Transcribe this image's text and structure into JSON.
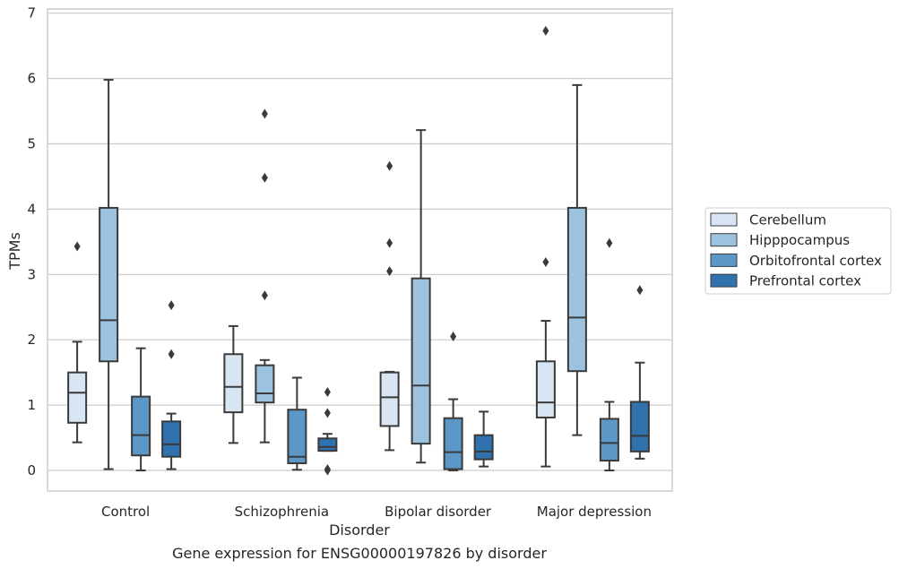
{
  "chart_data": {
    "type": "boxplot",
    "title": "",
    "caption": "Gene expression for ENSG00000197826 by disorder",
    "xlabel": "Disorder",
    "ylabel": "TPMs",
    "ylim": [
      -0.3,
      7.08
    ],
    "yticks": [
      0,
      1,
      2,
      3,
      4,
      5,
      6,
      7
    ],
    "grid": "horizontal",
    "legend_position": "right",
    "categories": [
      "Control",
      "Schizophrenia",
      "Bipolar disorder",
      "Major depression"
    ],
    "series": [
      {
        "name": "Cerebellum",
        "color": "#d8e5f3",
        "boxes": [
          {
            "whisker_low": 0.43,
            "q1": 0.73,
            "median": 1.19,
            "q3": 1.5,
            "whisker_high": 1.97,
            "outliers": [
              3.43
            ]
          },
          {
            "whisker_low": 0.42,
            "q1": 0.89,
            "median": 1.28,
            "q3": 1.78,
            "whisker_high": 2.21,
            "outliers": []
          },
          {
            "whisker_low": 0.31,
            "q1": 0.68,
            "median": 1.12,
            "q3": 1.5,
            "whisker_high": 1.51,
            "outliers": [
              3.05,
              3.48,
              4.66
            ]
          },
          {
            "whisker_low": 0.06,
            "q1": 0.81,
            "median": 1.04,
            "q3": 1.67,
            "whisker_high": 2.29,
            "outliers": [
              3.19,
              6.73
            ]
          }
        ]
      },
      {
        "name": "Hipppocampus",
        "color": "#9bc3df",
        "boxes": [
          {
            "whisker_low": 0.02,
            "q1": 1.67,
            "median": 2.3,
            "q3": 4.02,
            "whisker_high": 5.98,
            "outliers": []
          },
          {
            "whisker_low": 0.43,
            "q1": 1.04,
            "median": 1.18,
            "q3": 1.61,
            "whisker_high": 1.69,
            "outliers": [
              2.68,
              4.48,
              5.46
            ]
          },
          {
            "whisker_low": 0.12,
            "q1": 0.41,
            "median": 1.3,
            "q3": 2.94,
            "whisker_high": 5.21,
            "outliers": []
          },
          {
            "whisker_low": 0.54,
            "q1": 1.52,
            "median": 2.34,
            "q3": 4.02,
            "whisker_high": 5.9,
            "outliers": []
          }
        ]
      },
      {
        "name": "Orbitofrontal cortex",
        "color": "#5b98c8",
        "boxes": [
          {
            "whisker_low": 0.0,
            "q1": 0.23,
            "median": 0.54,
            "q3": 1.13,
            "whisker_high": 1.87,
            "outliers": []
          },
          {
            "whisker_low": 0.01,
            "q1": 0.11,
            "median": 0.21,
            "q3": 0.93,
            "whisker_high": 1.42,
            "outliers": []
          },
          {
            "whisker_low": 0.0,
            "q1": 0.02,
            "median": 0.28,
            "q3": 0.8,
            "whisker_high": 1.09,
            "outliers": [
              2.05
            ]
          },
          {
            "whisker_low": 0.0,
            "q1": 0.15,
            "median": 0.42,
            "q3": 0.79,
            "whisker_high": 1.05,
            "outliers": [
              3.48
            ]
          }
        ]
      },
      {
        "name": "Prefrontal cortex",
        "color": "#2f72ae",
        "boxes": [
          {
            "whisker_low": 0.02,
            "q1": 0.21,
            "median": 0.4,
            "q3": 0.75,
            "whisker_high": 0.87,
            "outliers": [
              1.78,
              2.53
            ]
          },
          {
            "whisker_low": 0.3,
            "q1": 0.3,
            "median": 0.36,
            "q3": 0.49,
            "whisker_high": 0.56,
            "outliers": [
              0.0,
              0.02,
              0.88,
              1.2
            ]
          },
          {
            "whisker_low": 0.06,
            "q1": 0.17,
            "median": 0.29,
            "q3": 0.54,
            "whisker_high": 0.9,
            "outliers": []
          },
          {
            "whisker_low": 0.18,
            "q1": 0.29,
            "median": 0.53,
            "q3": 1.05,
            "whisker_high": 1.65,
            "outliers": [
              2.76
            ]
          }
        ]
      }
    ]
  }
}
